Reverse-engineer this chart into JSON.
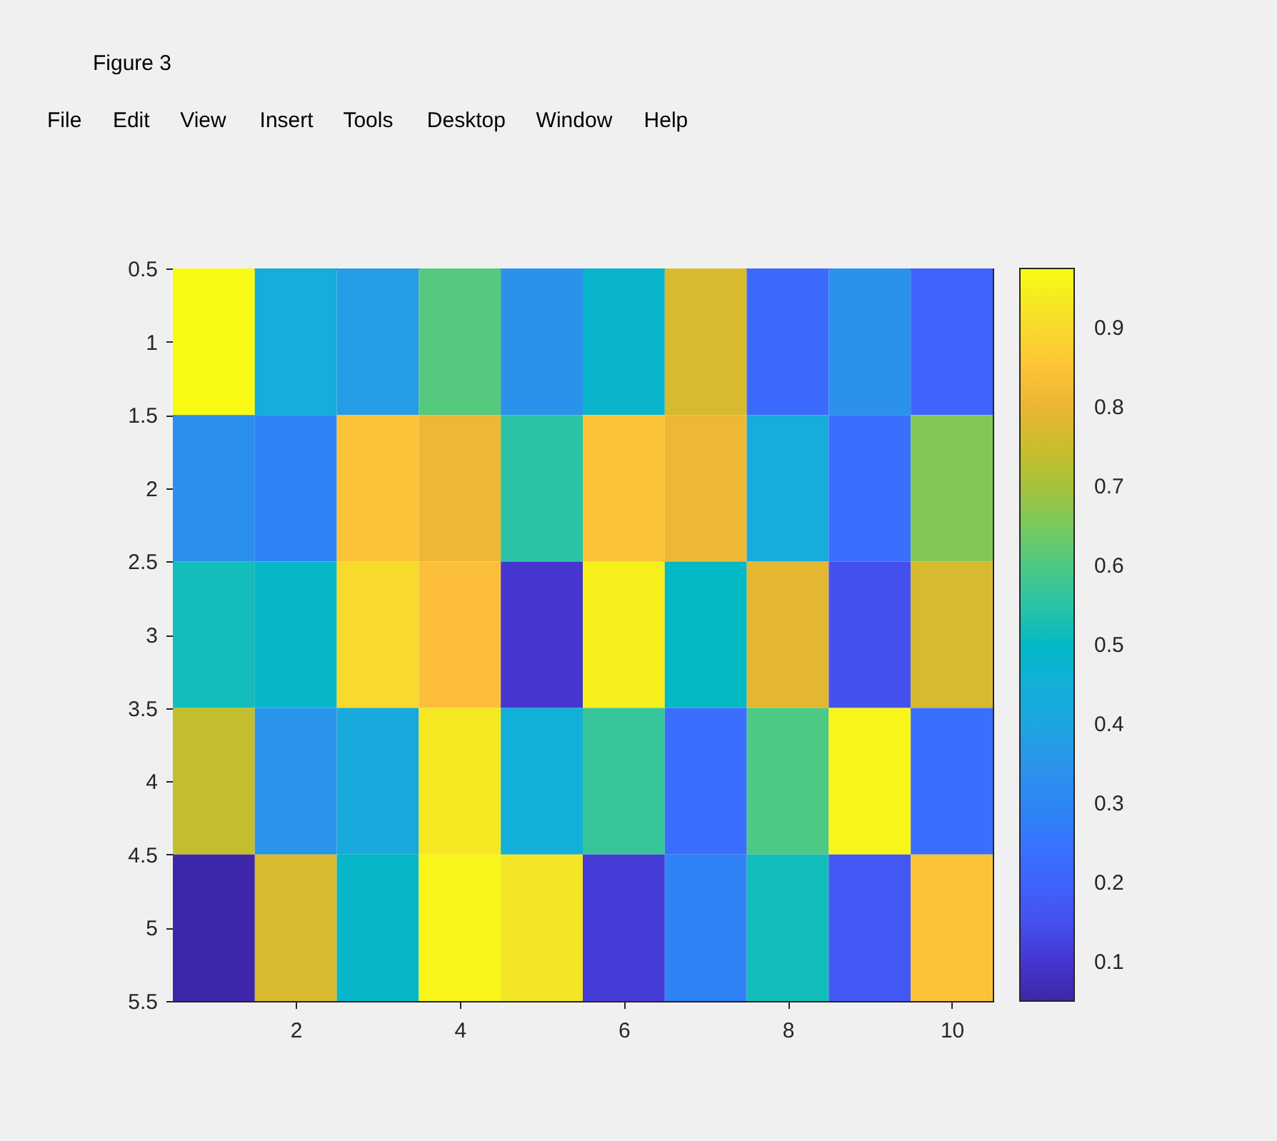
{
  "chart_data": {
    "type": "heatmap",
    "title": "Figure 3",
    "annotations": [
      "File",
      "Edit",
      "View",
      "Insert",
      "Tools",
      "Desktop",
      "Window",
      "Help"
    ],
    "x": [
      1,
      2,
      3,
      4,
      5,
      6,
      7,
      8,
      9,
      10
    ],
    "xlim": [
      0.5,
      10.5
    ],
    "xticks": [
      2,
      4,
      6,
      8,
      10
    ],
    "ylim": [
      5.5,
      0.5
    ],
    "yticks": [
      0.5,
      1,
      1.5,
      2,
      2.5,
      3,
      3.5,
      4,
      4.5,
      5,
      5.5
    ],
    "cells": [
      [
        0.975,
        0.43,
        0.37,
        0.61,
        0.34,
        0.48,
        0.77,
        0.22,
        0.34,
        0.2
      ],
      [
        0.33,
        0.29,
        0.85,
        0.81,
        0.55,
        0.85,
        0.81,
        0.43,
        0.23,
        0.66
      ],
      [
        0.52,
        0.49,
        0.9,
        0.84,
        0.1,
        0.95,
        0.5,
        0.79,
        0.15,
        0.77
      ],
      [
        0.74,
        0.35,
        0.42,
        0.93,
        0.45,
        0.57,
        0.23,
        0.6,
        0.96,
        0.23
      ],
      [
        0.05,
        0.77,
        0.49,
        0.96,
        0.92,
        0.11,
        0.29,
        0.52,
        0.17,
        0.85
      ]
    ],
    "clim": [
      0.05,
      0.975
    ],
    "cticks": [
      0.1,
      0.2,
      0.3,
      0.4,
      0.5,
      0.6,
      0.7,
      0.8,
      0.9
    ]
  }
}
